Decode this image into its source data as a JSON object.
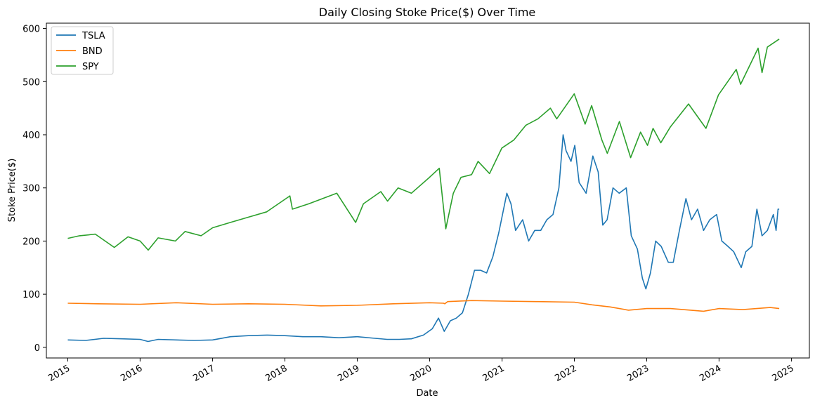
{
  "chart_data": {
    "type": "line",
    "title": "Daily Closing Stoke Price($) Over Time",
    "xlabel": "Date",
    "ylabel": "Stoke Price($)",
    "x_ticks": [
      "2015",
      "2016",
      "2017",
      "2018",
      "2019",
      "2020",
      "2021",
      "2022",
      "2023",
      "2024",
      "2025"
    ],
    "y_ticks": [
      0,
      100,
      200,
      300,
      400,
      500,
      600
    ],
    "xlim": [
      "2014-09-15",
      "2025-04-01"
    ],
    "ylim": [
      -20,
      610
    ],
    "grid": false,
    "legend": {
      "position": "top-left"
    },
    "series": [
      {
        "name": "TSLA",
        "color": "#1f77b4",
        "x": [
          "2015-01-01",
          "2015-04-01",
          "2015-07-01",
          "2015-10-01",
          "2016-01-01",
          "2016-02-10",
          "2016-04-01",
          "2016-07-01",
          "2016-10-01",
          "2017-01-01",
          "2017-04-01",
          "2017-07-01",
          "2017-10-01",
          "2018-01-01",
          "2018-04-01",
          "2018-07-01",
          "2018-10-01",
          "2019-01-01",
          "2019-04-01",
          "2019-06-01",
          "2019-08-01",
          "2019-10-01",
          "2019-12-01",
          "2020-01-15",
          "2020-02-15",
          "2020-03-15",
          "2020-04-15",
          "2020-05-15",
          "2020-06-15",
          "2020-07-15",
          "2020-08-15",
          "2020-09-15",
          "2020-10-15",
          "2020-11-15",
          "2020-12-15",
          "2021-01-25",
          "2021-02-15",
          "2021-03-10",
          "2021-04-15",
          "2021-05-15",
          "2021-06-15",
          "2021-07-15",
          "2021-08-15",
          "2021-09-15",
          "2021-10-15",
          "2021-11-05",
          "2021-11-20",
          "2021-12-15",
          "2022-01-03",
          "2022-01-25",
          "2022-03-01",
          "2022-04-04",
          "2022-05-01",
          "2022-05-24",
          "2022-06-15",
          "2022-07-15",
          "2022-08-15",
          "2022-09-20",
          "2022-10-15",
          "2022-11-15",
          "2022-12-10",
          "2022-12-28",
          "2023-01-20",
          "2023-02-15",
          "2023-03-15",
          "2023-04-20",
          "2023-05-15",
          "2023-06-15",
          "2023-07-18",
          "2023-08-15",
          "2023-09-15",
          "2023-10-15",
          "2023-11-15",
          "2023-12-20",
          "2024-01-15",
          "2024-02-15",
          "2024-03-15",
          "2024-04-22",
          "2024-05-15",
          "2024-06-15",
          "2024-07-10",
          "2024-08-05",
          "2024-09-01",
          "2024-10-01",
          "2024-10-15",
          "2024-10-25",
          "2024-10-31"
        ],
        "y": [
          14,
          13,
          17,
          16,
          15,
          11,
          15,
          14,
          13,
          14,
          20,
          22,
          23,
          22,
          20,
          20,
          18,
          20,
          17,
          15,
          15,
          16,
          23,
          35,
          55,
          30,
          50,
          55,
          65,
          100,
          145,
          145,
          140,
          170,
          215,
          290,
          270,
          220,
          240,
          200,
          220,
          220,
          240,
          250,
          300,
          400,
          370,
          350,
          380,
          310,
          290,
          360,
          330,
          230,
          240,
          300,
          290,
          300,
          210,
          185,
          130,
          110,
          140,
          200,
          190,
          160,
          160,
          220,
          280,
          240,
          260,
          220,
          240,
          250,
          200,
          190,
          180,
          150,
          180,
          190,
          260,
          210,
          220,
          250,
          220,
          260,
          260
        ]
      },
      {
        "name": "BND",
        "color": "#ff7f0e",
        "x": [
          "2015-01-01",
          "2015-06-01",
          "2016-01-01",
          "2016-07-01",
          "2017-01-01",
          "2017-07-01",
          "2018-01-01",
          "2018-07-01",
          "2019-01-01",
          "2019-07-01",
          "2020-01-01",
          "2020-03-12",
          "2020-03-18",
          "2020-04-01",
          "2020-08-01",
          "2021-01-01",
          "2021-07-01",
          "2022-01-01",
          "2022-04-01",
          "2022-07-01",
          "2022-10-01",
          "2023-01-01",
          "2023-05-01",
          "2023-10-15",
          "2024-01-01",
          "2024-05-01",
          "2024-09-15",
          "2024-10-31"
        ],
        "y": [
          83,
          82,
          81,
          84,
          81,
          82,
          81,
          78,
          79,
          82,
          84,
          83,
          82,
          86,
          88,
          87,
          86,
          85,
          80,
          76,
          70,
          73,
          73,
          68,
          73,
          71,
          75,
          73
        ]
      },
      {
        "name": "SPY",
        "color": "#2ca02c",
        "x": [
          "2015-01-01",
          "2015-03-01",
          "2015-05-20",
          "2015-08-24",
          "2015-11-01",
          "2016-01-01",
          "2016-02-11",
          "2016-04-01",
          "2016-06-27",
          "2016-08-15",
          "2016-11-04",
          "2017-01-01",
          "2017-04-01",
          "2017-07-01",
          "2017-10-01",
          "2018-01-26",
          "2018-02-08",
          "2018-05-01",
          "2018-09-20",
          "2018-12-24",
          "2019-02-01",
          "2019-04-30",
          "2019-06-03",
          "2019-07-26",
          "2019-10-01",
          "2020-01-01",
          "2020-02-19",
          "2020-03-23",
          "2020-04-30",
          "2020-06-08",
          "2020-07-31",
          "2020-09-02",
          "2020-10-30",
          "2020-12-31",
          "2021-03-01",
          "2021-05-01",
          "2021-07-01",
          "2021-09-02",
          "2021-10-04",
          "2021-12-31",
          "2022-02-24",
          "2022-03-29",
          "2022-05-20",
          "2022-06-16",
          "2022-08-16",
          "2022-10-12",
          "2022-12-01",
          "2023-01-05",
          "2023-02-02",
          "2023-03-13",
          "2023-05-01",
          "2023-07-31",
          "2023-10-27",
          "2023-12-29",
          "2024-03-28",
          "2024-04-19",
          "2024-07-16",
          "2024-08-05",
          "2024-09-01",
          "2024-10-31"
        ],
        "y": [
          205,
          210,
          213,
          188,
          208,
          200,
          183,
          206,
          200,
          218,
          210,
          225,
          235,
          245,
          255,
          285,
          260,
          270,
          290,
          235,
          270,
          293,
          275,
          300,
          290,
          320,
          337,
          223,
          290,
          320,
          325,
          350,
          327,
          375,
          390,
          418,
          430,
          450,
          430,
          477,
          420,
          455,
          390,
          365,
          425,
          357,
          405,
          380,
          412,
          385,
          415,
          458,
          412,
          475,
          523,
          495,
          563,
          517,
          565,
          580
        ]
      }
    ]
  }
}
